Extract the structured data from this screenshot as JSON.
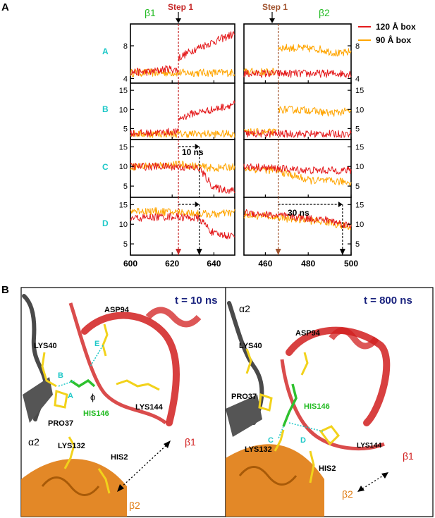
{
  "panel_labels": {
    "a": "A",
    "b": "B"
  },
  "colors": {
    "box120": "#e41a1c",
    "box90": "#ffa500",
    "cyan": "#1ec8c8",
    "green": "#22bb22",
    "step1_red": "#c62828",
    "step1_brown": "#a0522d",
    "navy": "#1a237e",
    "helix_red": "#d11f1f",
    "helix_orange": "#e07b10",
    "coil_gray": "#4a4a4a"
  },
  "legend": {
    "series_120": "120 Å   box",
    "series_90": "90 Å   box"
  },
  "strand_labels": {
    "left": "β1",
    "right": "β2"
  },
  "step_labels": {
    "left": "Step 1",
    "right": "Step 1"
  },
  "row_labels": [
    "A",
    "B",
    "C",
    "D"
  ],
  "time_annotations": {
    "left": "10 ns",
    "right": "30 ns"
  },
  "chart_data": [
    {
      "type": "line",
      "panel": "A-left",
      "series": [
        {
          "name": "120 Å   box",
          "segments": [
            {
              "x": [
                600,
                610,
                618,
                623
              ],
              "y": [
                4.8,
                4.8,
                5.2,
                5.0
              ]
            },
            {
              "x": [
                623,
                630,
                640,
                650
              ],
              "y": [
                6.5,
                7.5,
                8.5,
                9.5
              ]
            }
          ]
        },
        {
          "name": "90 Å   box",
          "segments": [
            {
              "x": [
                600,
                625,
                650
              ],
              "y": [
                4.7,
                4.7,
                4.7
              ]
            }
          ]
        }
      ],
      "x_ticks": [
        600,
        620,
        640
      ],
      "xlim": [
        600,
        650
      ],
      "ylim": [
        3.6,
        10.5
      ],
      "y_ticks": [
        4,
        8
      ],
      "step_x": 623
    },
    {
      "type": "line",
      "panel": "A-right",
      "series": [
        {
          "name": "120 Å   box",
          "segments": [
            {
              "x": [
                450,
                500
              ],
              "y": [
                4.6,
                4.6
              ]
            }
          ]
        },
        {
          "name": "90 Å   box",
          "segments": [
            {
              "x": [
                450,
                465
              ],
              "y": [
                4.8,
                4.8
              ]
            },
            {
              "x": [
                466,
                485,
                495,
                500
              ],
              "y": [
                7.8,
                7.6,
                7.0,
                7.3
              ]
            }
          ]
        }
      ],
      "x_ticks": [
        460,
        480,
        500
      ],
      "xlim": [
        450,
        500
      ],
      "ylim": [
        3.6,
        10.5
      ],
      "y_ticks": [
        4,
        8
      ],
      "step_x": 466
    },
    {
      "type": "line",
      "panel": "B-left",
      "series": [
        {
          "name": "120 Å   box",
          "segments": [
            {
              "x": [
                600,
                610,
                620,
                623
              ],
              "y": [
                3.8,
                3.8,
                4.2,
                4.0
              ]
            },
            {
              "x": [
                623,
                630,
                640,
                650
              ],
              "y": [
                7.5,
                9.0,
                10.0,
                11.5
              ]
            }
          ]
        },
        {
          "name": "90 Å   box",
          "segments": [
            {
              "x": [
                600,
                625,
                650
              ],
              "y": [
                3.6,
                3.6,
                3.6
              ]
            }
          ]
        }
      ],
      "x_ticks": [
        600,
        620,
        640
      ],
      "xlim": [
        600,
        650
      ],
      "ylim": [
        2.5,
        16.5
      ],
      "y_ticks": [
        5,
        10,
        15
      ],
      "step_x": 623
    },
    {
      "type": "line",
      "panel": "B-right",
      "series": [
        {
          "name": "120 Å   box",
          "segments": [
            {
              "x": [
                450,
                500
              ],
              "y": [
                3.6,
                3.6
              ]
            }
          ]
        },
        {
          "name": "90 Å   box",
          "segments": [
            {
              "x": [
                450,
                465
              ],
              "y": [
                4.0,
                4.0
              ]
            },
            {
              "x": [
                466,
                480,
                490,
                500
              ],
              "y": [
                10.0,
                9.8,
                9.0,
                9.6
              ]
            }
          ]
        }
      ],
      "x_ticks": [
        460,
        480,
        500
      ],
      "xlim": [
        450,
        500
      ],
      "ylim": [
        2.5,
        16.5
      ],
      "y_ticks": [
        5,
        10,
        15
      ],
      "step_x": 466
    },
    {
      "type": "line",
      "panel": "C-left",
      "series": [
        {
          "name": "120 Å   box",
          "segments": [
            {
              "x": [
                600,
                620,
                633,
                640,
                650
              ],
              "y": [
                10.0,
                10.0,
                9.5,
                4.5,
                3.8
              ]
            }
          ]
        },
        {
          "name": "90 Å   box",
          "segments": [
            {
              "x": [
                600,
                625,
                640,
                650
              ],
              "y": [
                10.0,
                10.5,
                9.5,
                10.0
              ]
            }
          ]
        }
      ],
      "x_ticks": [
        600,
        620,
        640
      ],
      "xlim": [
        600,
        650
      ],
      "ylim": [
        2.5,
        16.5
      ],
      "y_ticks": [
        5,
        10,
        15
      ],
      "step_x": 623,
      "arrow_x": [
        623,
        633
      ]
    },
    {
      "type": "line",
      "panel": "C-right",
      "series": [
        {
          "name": "120 Å   box",
          "segments": [
            {
              "x": [
                450,
                465,
                480,
                500
              ],
              "y": [
                10.0,
                9.5,
                9.0,
                9.0
              ]
            }
          ]
        },
        {
          "name": "90 Å   box",
          "segments": [
            {
              "x": [
                450,
                465,
                480,
                500
              ],
              "y": [
                9.5,
                9.0,
                6.5,
                6.0
              ]
            }
          ]
        }
      ],
      "x_ticks": [
        460,
        480,
        500
      ],
      "xlim": [
        450,
        500
      ],
      "ylim": [
        2.5,
        16.5
      ],
      "y_ticks": [
        5,
        10,
        15
      ],
      "step_x": 466
    },
    {
      "type": "line",
      "panel": "D-left",
      "series": [
        {
          "name": "120 Å   box",
          "segments": [
            {
              "x": [
                600,
                620,
                633,
                640,
                650
              ],
              "y": [
                11.5,
                12.0,
                11.5,
                7.5,
                7.0
              ]
            }
          ]
        },
        {
          "name": "90 Å   box",
          "segments": [
            {
              "x": [
                600,
                625,
                640,
                650
              ],
              "y": [
                13.5,
                13.0,
                12.5,
                13.0
              ]
            }
          ]
        }
      ],
      "x_ticks": [
        600,
        620,
        640
      ],
      "xlim": [
        600,
        650
      ],
      "ylim": [
        2.5,
        16.5
      ],
      "y_ticks": [
        5,
        10,
        15
      ],
      "step_x": 623,
      "arrow_x": [
        623,
        633
      ]
    },
    {
      "type": "line",
      "panel": "D-right",
      "series": [
        {
          "name": "120 Å   box",
          "segments": [
            {
              "x": [
                450,
                470,
                490,
                500
              ],
              "y": [
                13.0,
                12.0,
                11.0,
                9.5
              ]
            }
          ]
        },
        {
          "name": "90 Å   box",
          "segments": [
            {
              "x": [
                450,
                470,
                490,
                500
              ],
              "y": [
                12.5,
                11.5,
                10.5,
                9.0
              ]
            }
          ]
        }
      ],
      "x_ticks": [
        460,
        480,
        500
      ],
      "xlim": [
        450,
        500
      ],
      "ylim": [
        2.5,
        16.5
      ],
      "y_ticks": [
        5,
        10,
        15
      ],
      "step_x": 466,
      "arrow_x": [
        466,
        496
      ]
    }
  ],
  "panel_b": {
    "left_time": "t = 10 ns",
    "right_time": "t = 800 ns",
    "labels_left": {
      "asp94": "ASP94",
      "lys40": "LYS40",
      "his146": "HIS146",
      "lys144": "LYS144",
      "pro37": "PRO37",
      "lys132": "LYS132",
      "his2": "HIS2",
      "a2": "α2",
      "b1": "β1",
      "b2": "β2",
      "phi": "ϕ",
      "dist_b": "B",
      "dist_a": "A",
      "dist_e": "E"
    },
    "labels_right": {
      "asp94": "ASP94",
      "lys40": "LYS40",
      "his146": "HIS146",
      "lys144": "LYS144",
      "pro37": "PRO37",
      "lys132": "LYS132",
      "his2": "HIS2",
      "a2": "α2",
      "b1": "β1",
      "b2": "β2",
      "dist_c": "C",
      "dist_d": "D"
    }
  }
}
